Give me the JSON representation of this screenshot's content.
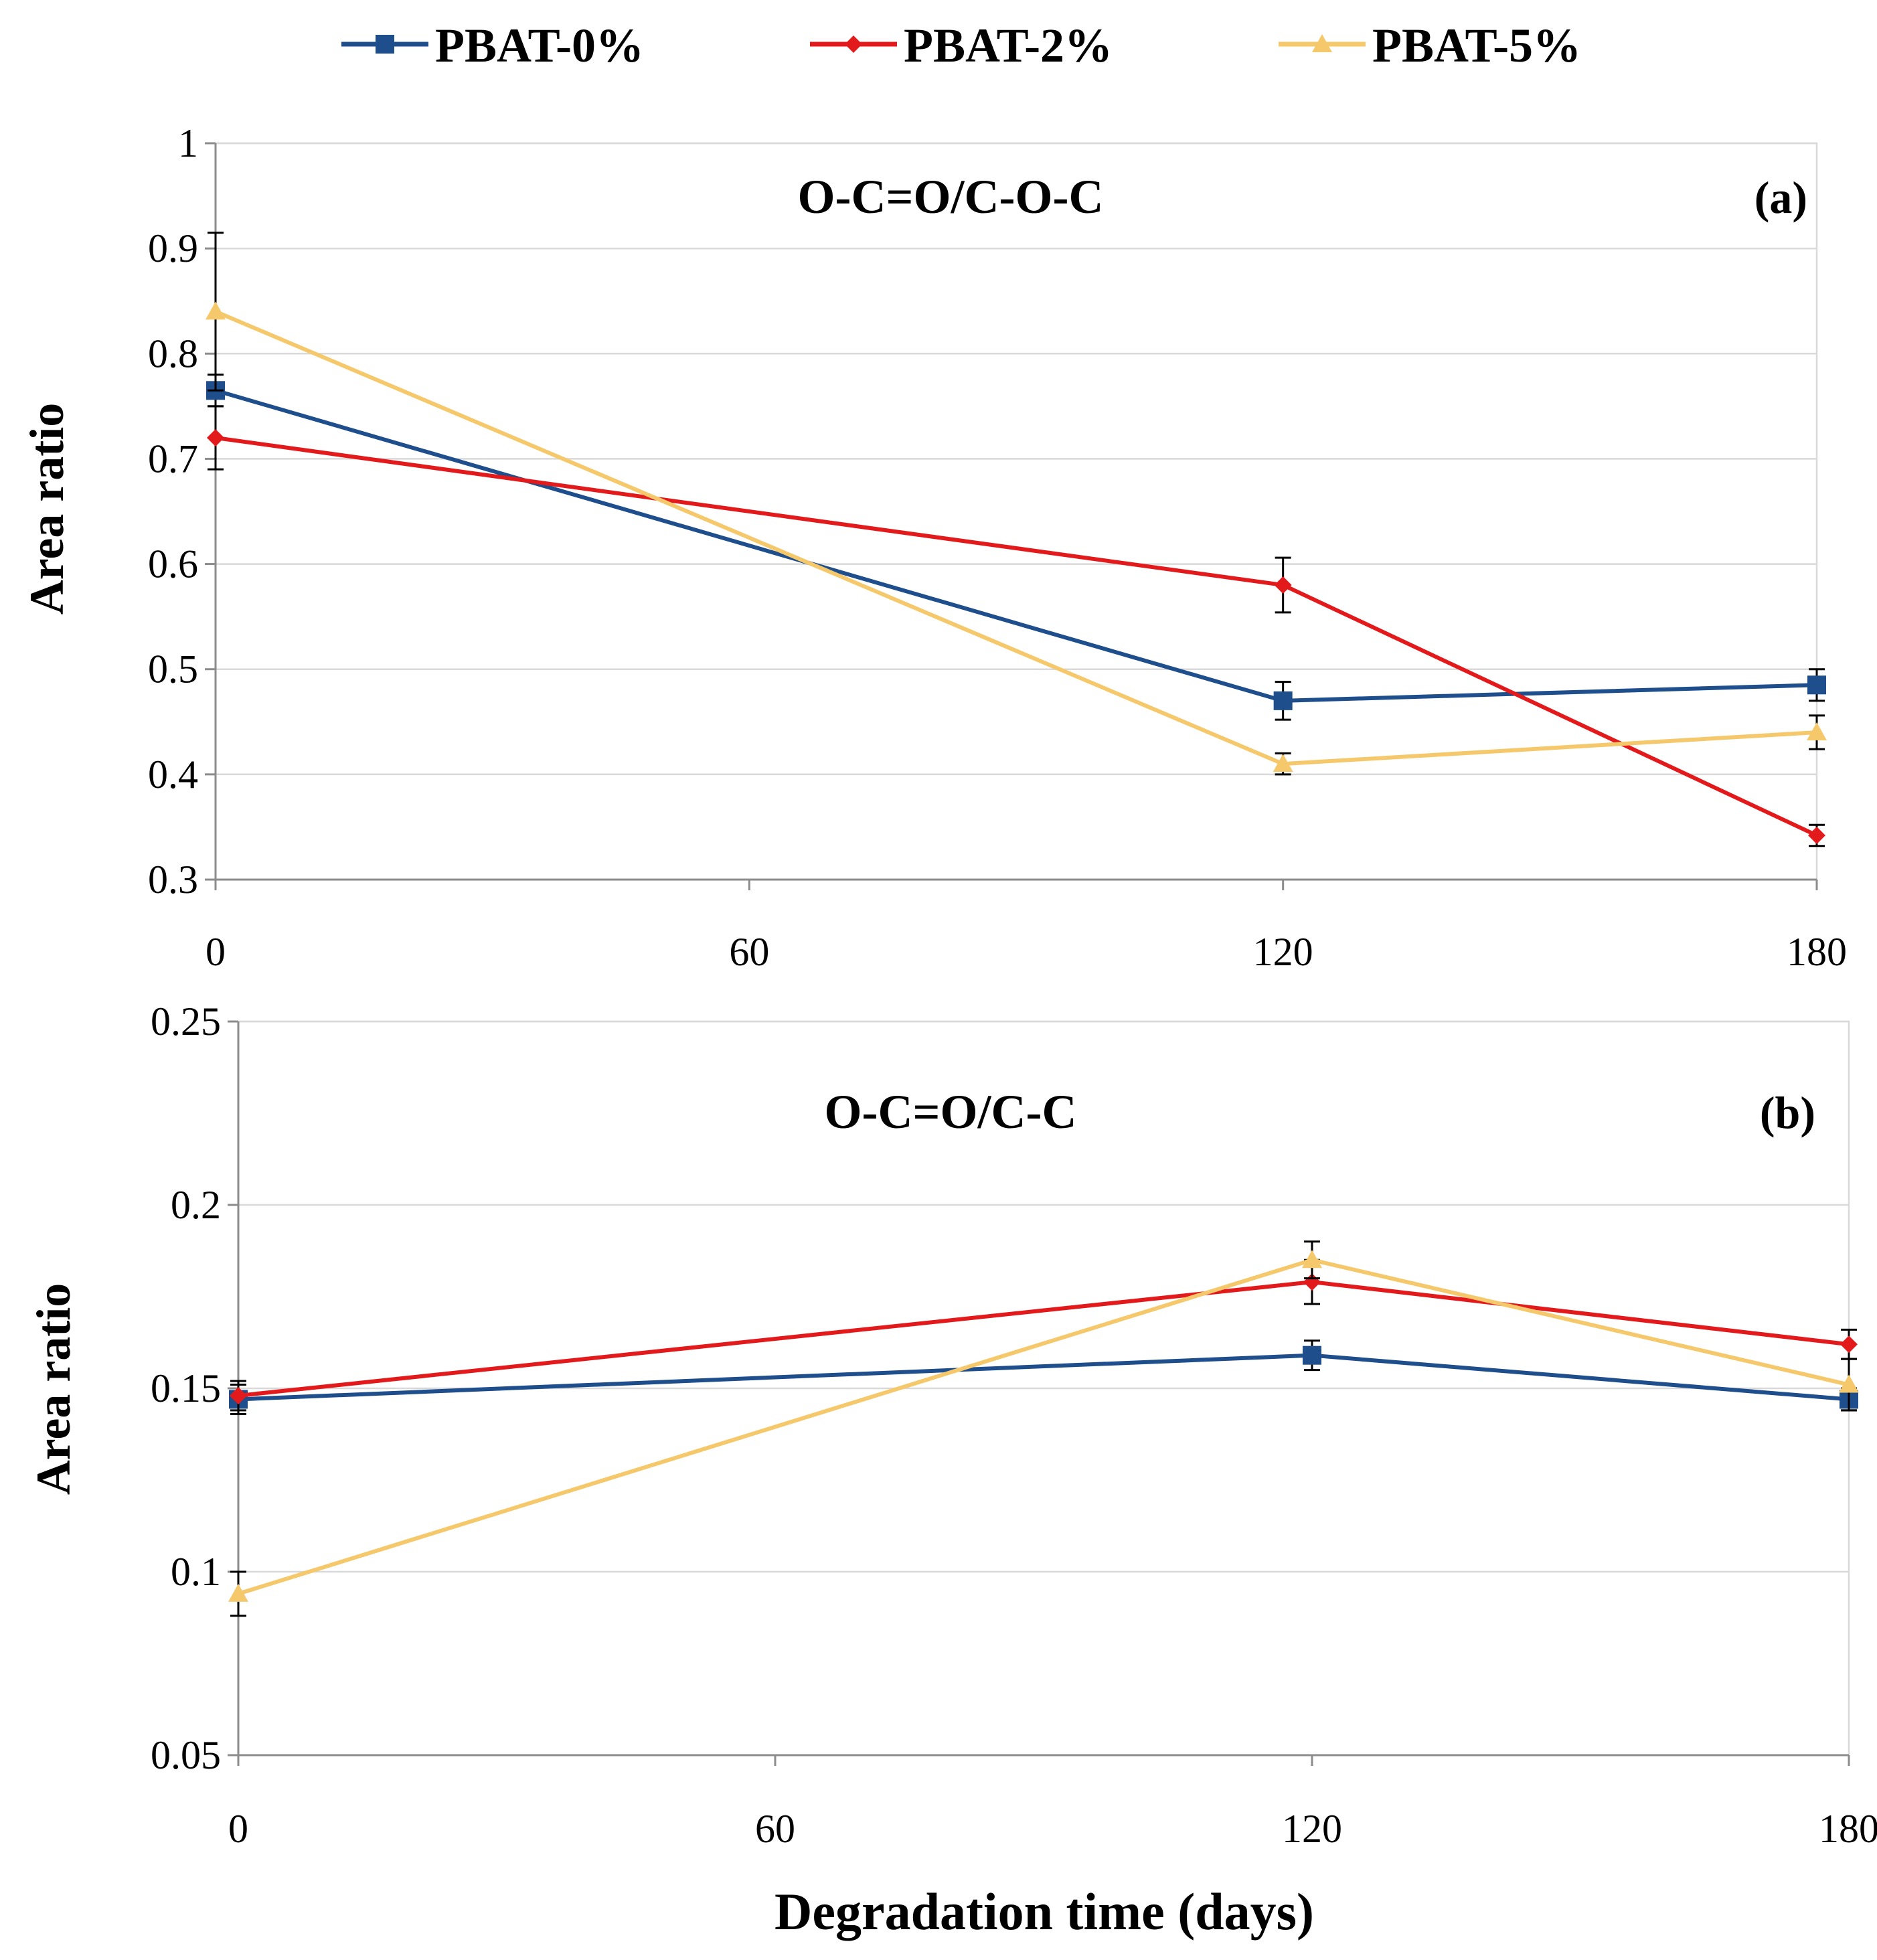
{
  "legend": [
    {
      "name": "PBAT-0%",
      "color": "#1f4e8c",
      "marker": "square"
    },
    {
      "name": "PBAT-2%",
      "color": "#e31a1c",
      "marker": "diamond"
    },
    {
      "name": "PBAT-5%",
      "color": "#f5c96b",
      "marker": "triangle"
    }
  ],
  "xlabel": "Degradation time (days)",
  "chart_data": [
    {
      "type": "line",
      "panel_label": "(a)",
      "title": "O-C=O/C-O-C",
      "ylabel": "Area ratio",
      "xlabel": "Degradation time (days)",
      "x": [
        0,
        120,
        180
      ],
      "xticks": [
        "0",
        "60",
        "120",
        "180"
      ],
      "xlim": [
        0,
        180
      ],
      "ylim": [
        0.3,
        1.0
      ],
      "yticks": [
        "0.3",
        "0.4",
        "0.5",
        "0.6",
        "0.7",
        "0.8",
        "0.9",
        "1"
      ],
      "grid": true,
      "series": [
        {
          "name": "PBAT-0%",
          "values": [
            0.765,
            0.47,
            0.485
          ],
          "errors": [
            0.015,
            0.018,
            0.015
          ]
        },
        {
          "name": "PBAT-2%",
          "values": [
            0.72,
            0.58,
            0.342
          ],
          "errors": [
            0.03,
            0.026,
            0.01
          ]
        },
        {
          "name": "PBAT-5%",
          "values": [
            0.84,
            0.41,
            0.44
          ],
          "errors": [
            0.075,
            0.01,
            0.016
          ]
        }
      ]
    },
    {
      "type": "line",
      "panel_label": "(b)",
      "title": "O-C=O/C-C",
      "ylabel": "Area ratio",
      "xlabel": "Degradation time (days)",
      "x": [
        0,
        120,
        180
      ],
      "xticks": [
        "0",
        "60",
        "120",
        "180"
      ],
      "xlim": [
        0,
        180
      ],
      "ylim": [
        0.05,
        0.25
      ],
      "yticks": [
        "0.05",
        "0.1",
        "0.15",
        "0.2",
        "0.25"
      ],
      "grid": true,
      "series": [
        {
          "name": "PBAT-0%",
          "values": [
            0.147,
            0.159,
            0.147
          ],
          "errors": [
            0.004,
            0.004,
            0.003
          ]
        },
        {
          "name": "PBAT-2%",
          "values": [
            0.148,
            0.179,
            0.162
          ],
          "errors": [
            0.004,
            0.006,
            0.004
          ]
        },
        {
          "name": "PBAT-5%",
          "values": [
            0.094,
            0.185,
            0.151
          ],
          "errors": [
            0.006,
            0.005,
            0.007
          ]
        }
      ]
    }
  ]
}
